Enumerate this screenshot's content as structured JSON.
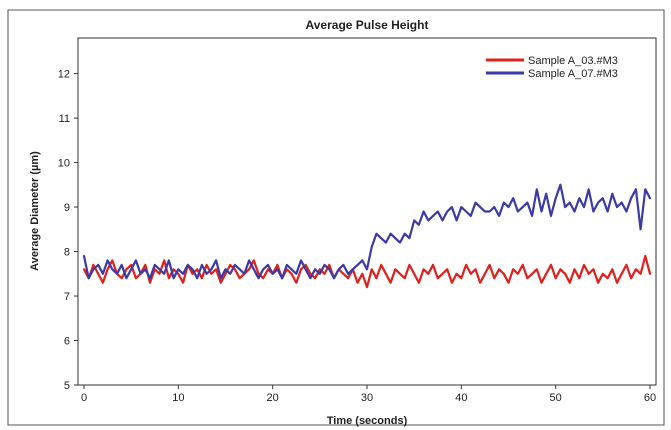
{
  "chart_data": {
    "type": "line",
    "title": "Average Pulse Height",
    "xlabel": "Time (seconds)",
    "ylabel": "Average Diameter (µm)",
    "xlim": [
      0,
      60
    ],
    "ylim": [
      5,
      12.8
    ],
    "xticks": [
      "0",
      "10",
      "20",
      "30",
      "40",
      "50",
      "60"
    ],
    "yticks": [
      "5",
      "6",
      "7",
      "8",
      "9",
      "10",
      "11",
      "12"
    ],
    "grid": false,
    "legend_position": "top-right",
    "series": [
      {
        "name": "Sample A_03.#M3",
        "color": "#e0201b",
        "x": [
          0,
          0.5,
          1,
          1.5,
          2,
          2.5,
          3,
          3.5,
          4,
          4.5,
          5,
          5.5,
          6,
          6.5,
          7,
          7.5,
          8,
          8.5,
          9,
          9.5,
          10,
          10.5,
          11,
          11.5,
          12,
          12.5,
          13,
          13.5,
          14,
          14.5,
          15,
          15.5,
          16,
          16.5,
          17,
          17.5,
          18,
          18.5,
          19,
          19.5,
          20,
          20.5,
          21,
          21.5,
          22,
          22.5,
          23,
          23.5,
          24,
          24.5,
          25,
          25.5,
          26,
          26.5,
          27,
          27.5,
          28,
          28.5,
          29,
          29.5,
          30,
          30.5,
          31,
          31.5,
          32,
          32.5,
          33,
          33.5,
          34,
          34.5,
          35,
          35.5,
          36,
          36.5,
          37,
          37.5,
          38,
          38.5,
          39,
          39.5,
          40,
          40.5,
          41,
          41.5,
          42,
          42.5,
          43,
          43.5,
          44,
          44.5,
          45,
          45.5,
          46,
          46.5,
          47,
          47.5,
          48,
          48.5,
          49,
          49.5,
          50,
          50.5,
          51,
          51.5,
          52,
          52.5,
          53,
          53.5,
          54,
          54.5,
          55,
          55.5,
          56,
          56.5,
          57,
          57.5,
          58,
          58.5,
          59,
          59.5,
          60
        ],
        "y": [
          7.6,
          7.4,
          7.7,
          7.5,
          7.3,
          7.6,
          7.8,
          7.5,
          7.4,
          7.6,
          7.7,
          7.4,
          7.5,
          7.7,
          7.3,
          7.6,
          7.5,
          7.8,
          7.4,
          7.6,
          7.5,
          7.3,
          7.7,
          7.5,
          7.6,
          7.4,
          7.7,
          7.5,
          7.6,
          7.3,
          7.5,
          7.7,
          7.6,
          7.4,
          7.5,
          7.6,
          7.8,
          7.5,
          7.4,
          7.6,
          7.5,
          7.7,
          7.4,
          7.6,
          7.5,
          7.3,
          7.6,
          7.7,
          7.5,
          7.4,
          7.6,
          7.5,
          7.7,
          7.4,
          7.6,
          7.5,
          7.4,
          7.6,
          7.3,
          7.5,
          7.2,
          7.6,
          7.4,
          7.7,
          7.5,
          7.3,
          7.6,
          7.5,
          7.4,
          7.7,
          7.5,
          7.3,
          7.6,
          7.5,
          7.7,
          7.4,
          7.5,
          7.6,
          7.3,
          7.5,
          7.4,
          7.7,
          7.5,
          7.6,
          7.3,
          7.5,
          7.7,
          7.4,
          7.6,
          7.5,
          7.3,
          7.6,
          7.5,
          7.7,
          7.4,
          7.5,
          7.6,
          7.3,
          7.5,
          7.7,
          7.4,
          7.6,
          7.5,
          7.3,
          7.6,
          7.4,
          7.7,
          7.5,
          7.6,
          7.3,
          7.5,
          7.4,
          7.6,
          7.3,
          7.5,
          7.7,
          7.4,
          7.6,
          7.5,
          7.9,
          7.5
        ]
      },
      {
        "name": "Sample A_07.#M3",
        "color": "#3a3aa8",
        "x": [
          0,
          0.5,
          1,
          1.5,
          2,
          2.5,
          3,
          3.5,
          4,
          4.5,
          5,
          5.5,
          6,
          6.5,
          7,
          7.5,
          8,
          8.5,
          9,
          9.5,
          10,
          10.5,
          11,
          11.5,
          12,
          12.5,
          13,
          13.5,
          14,
          14.5,
          15,
          15.5,
          16,
          16.5,
          17,
          17.5,
          18,
          18.5,
          19,
          19.5,
          20,
          20.5,
          21,
          21.5,
          22,
          22.5,
          23,
          23.5,
          24,
          24.5,
          25,
          25.5,
          26,
          26.5,
          27,
          27.5,
          28,
          28.5,
          29,
          29.5,
          30,
          30.5,
          31,
          31.5,
          32,
          32.5,
          33,
          33.5,
          34,
          34.5,
          35,
          35.5,
          36,
          36.5,
          37,
          37.5,
          38,
          38.5,
          39,
          39.5,
          40,
          40.5,
          41,
          41.5,
          42,
          42.5,
          43,
          43.5,
          44,
          44.5,
          45,
          45.5,
          46,
          46.5,
          47,
          47.5,
          48,
          48.5,
          49,
          49.5,
          50,
          50.5,
          51,
          51.5,
          52,
          52.5,
          53,
          53.5,
          54,
          54.5,
          55,
          55.5,
          56,
          56.5,
          57,
          57.5,
          58,
          58.5,
          59,
          59.5,
          60
        ],
        "y": [
          7.9,
          7.4,
          7.6,
          7.7,
          7.5,
          7.8,
          7.6,
          7.5,
          7.7,
          7.4,
          7.6,
          7.8,
          7.5,
          7.6,
          7.4,
          7.7,
          7.6,
          7.5,
          7.8,
          7.4,
          7.6,
          7.5,
          7.7,
          7.6,
          7.4,
          7.7,
          7.5,
          7.6,
          7.8,
          7.4,
          7.6,
          7.5,
          7.7,
          7.6,
          7.5,
          7.8,
          7.6,
          7.4,
          7.6,
          7.7,
          7.5,
          7.6,
          7.4,
          7.7,
          7.6,
          7.5,
          7.8,
          7.6,
          7.4,
          7.6,
          7.5,
          7.7,
          7.6,
          7.4,
          7.6,
          7.7,
          7.5,
          7.6,
          7.7,
          7.8,
          7.6,
          8.1,
          8.4,
          8.3,
          8.2,
          8.4,
          8.3,
          8.2,
          8.4,
          8.3,
          8.7,
          8.6,
          8.9,
          8.7,
          8.8,
          8.9,
          8.7,
          8.9,
          9.0,
          8.7,
          9.0,
          8.9,
          8.8,
          9.1,
          9.0,
          8.9,
          8.9,
          9.0,
          8.8,
          9.1,
          9.0,
          9.2,
          8.9,
          9.0,
          9.1,
          8.8,
          9.4,
          8.9,
          9.3,
          8.8,
          9.2,
          9.5,
          9.0,
          9.1,
          8.9,
          9.2,
          9.0,
          9.4,
          8.9,
          9.1,
          9.2,
          8.9,
          9.3,
          9.0,
          9.1,
          8.9,
          9.2,
          9.4,
          8.5,
          9.4,
          9.2
        ]
      }
    ]
  }
}
